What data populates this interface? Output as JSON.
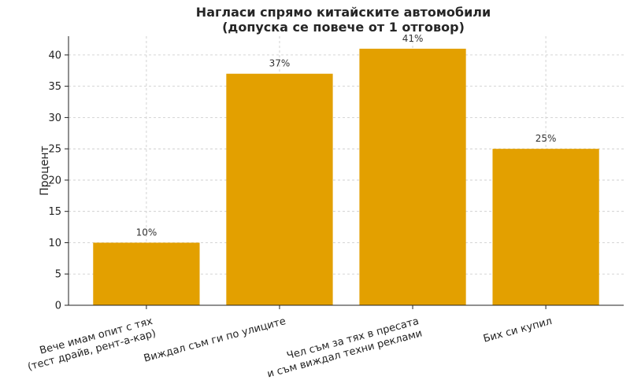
{
  "chart_data": {
    "type": "bar",
    "title_lines": [
      "Нагласи спрямо китайските автомобили",
      "(допуска се повече от 1 отговор)"
    ],
    "ylabel": "Процент",
    "xlabel": "",
    "ylim": [
      0,
      43
    ],
    "yticks": [
      0,
      5,
      10,
      15,
      20,
      25,
      30,
      35,
      40
    ],
    "grid": true,
    "bar_color": "#E3A000",
    "categories": [
      [
        "Вече имам опит с тях",
        "(тест драйв, рент-а-кар)"
      ],
      [
        "Виждал съм ги по улиците"
      ],
      [
        "Чел съм за тях в пресата",
        "и съм виждал техни реклами"
      ],
      [
        "Бих си купил"
      ]
    ],
    "values": [
      10,
      37,
      41,
      25
    ],
    "value_labels": [
      "10%",
      "37%",
      "41%",
      "25%"
    ]
  }
}
